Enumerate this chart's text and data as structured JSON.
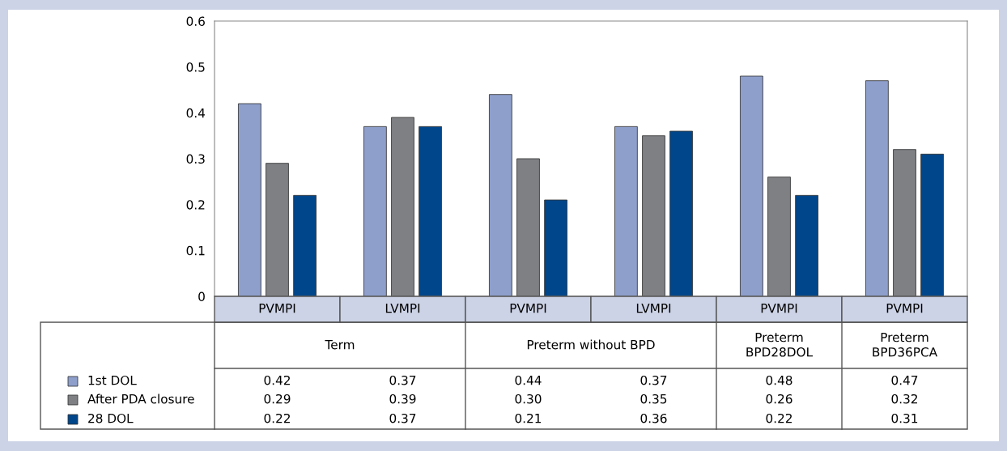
{
  "chart_data": {
    "type": "bar",
    "categories": [
      "PVMPI",
      "LVMPI",
      "PVMPI",
      "LVMPI",
      "PVMPI",
      "PVMPI"
    ],
    "series": [
      {
        "name": "1st DOL",
        "color": "#8e9fcc",
        "values": [
          0.42,
          0.37,
          0.44,
          0.37,
          0.48,
          0.47
        ],
        "value_labels": [
          "0.42",
          "0.37",
          "0.44",
          "0.37",
          "0.48",
          "0.47"
        ]
      },
      {
        "name": "After PDA closure",
        "color": "#7f8084",
        "values": [
          0.29,
          0.39,
          0.3,
          0.35,
          0.26,
          0.32
        ],
        "value_labels": [
          "0.29",
          "0.39",
          "0.30",
          "0.35",
          "0.26",
          "0.32"
        ]
      },
      {
        "name": "28 DOL",
        "color": "#00468b",
        "values": [
          0.22,
          0.37,
          0.21,
          0.36,
          0.22,
          0.31
        ],
        "value_labels": [
          "0.22",
          "0.37",
          "0.21",
          "0.36",
          "0.22",
          "0.31"
        ]
      }
    ],
    "annotations": [
      "Term",
      "Preterm without BPD",
      "Preterm\nBPD28DOL",
      "Preterm\nBPD36PCA"
    ],
    "ylim": [
      0,
      0.6
    ],
    "yticks": [
      0,
      0.1,
      0.2,
      0.3,
      0.4,
      0.5,
      0.6
    ],
    "grid": false,
    "legend": "bottom left"
  }
}
